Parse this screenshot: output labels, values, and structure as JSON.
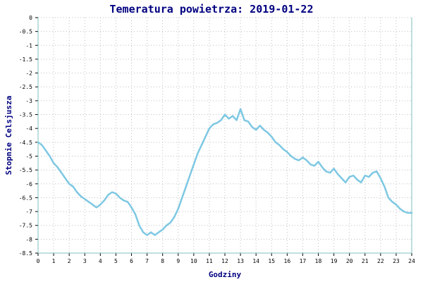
{
  "chart_data": {
    "type": "line",
    "title": "Temeratura powietrza: 2019-01-22",
    "xlabel": "Godziny",
    "ylabel": "Stopnie Celsjusza",
    "xlim": [
      0,
      24
    ],
    "ylim": [
      -8.5,
      0
    ],
    "xticks": [
      "0",
      "1",
      "2",
      "3",
      "4",
      "5",
      "6",
      "7",
      "8",
      "9",
      "10",
      "11",
      "12",
      "13",
      "14",
      "15",
      "16",
      "17",
      "18",
      "19",
      "20",
      "21",
      "22",
      "23",
      "24"
    ],
    "yticks": [
      "0",
      "-0.5",
      "-1",
      "-1.5",
      "-2",
      "-2.5",
      "-3",
      "-3.5",
      "-4",
      "-4.5",
      "-5",
      "-5.5",
      "-6",
      "-6.5",
      "-7",
      "-7.5",
      "-8",
      "-8.5"
    ],
    "grid": true,
    "series": [
      {
        "color": "#7ec8e3",
        "x": [
          0,
          0.25,
          0.5,
          0.75,
          1,
          1.25,
          1.5,
          1.75,
          2,
          2.25,
          2.5,
          2.75,
          3,
          3.25,
          3.5,
          3.75,
          4,
          4.25,
          4.5,
          4.75,
          5,
          5.25,
          5.5,
          5.75,
          6,
          6.25,
          6.5,
          6.75,
          7,
          7.25,
          7.5,
          7.75,
          8,
          8.25,
          8.5,
          8.75,
          9,
          9.25,
          9.5,
          9.75,
          10,
          10.25,
          10.5,
          10.75,
          11,
          11.25,
          11.5,
          11.75,
          12,
          12.25,
          12.5,
          12.75,
          13,
          13.25,
          13.5,
          13.75,
          14,
          14.25,
          14.5,
          14.75,
          15,
          15.25,
          15.5,
          15.75,
          16,
          16.25,
          16.5,
          16.75,
          17,
          17.25,
          17.5,
          17.75,
          18,
          18.25,
          18.5,
          18.75,
          19,
          19.25,
          19.5,
          19.75,
          20,
          20.25,
          20.5,
          20.75,
          21,
          21.25,
          21.5,
          21.75,
          22,
          22.25,
          22.5,
          22.75,
          23,
          23.25,
          23.5,
          23.75,
          24
        ],
        "y": [
          -4.5,
          -4.6,
          -4.8,
          -5.0,
          -5.25,
          -5.4,
          -5.6,
          -5.8,
          -6.0,
          -6.1,
          -6.3,
          -6.45,
          -6.55,
          -6.65,
          -6.75,
          -6.85,
          -6.75,
          -6.6,
          -6.4,
          -6.3,
          -6.35,
          -6.5,
          -6.6,
          -6.65,
          -6.85,
          -7.1,
          -7.5,
          -7.75,
          -7.85,
          -7.75,
          -7.85,
          -7.75,
          -7.65,
          -7.5,
          -7.4,
          -7.2,
          -6.9,
          -6.5,
          -6.1,
          -5.7,
          -5.3,
          -4.9,
          -4.6,
          -4.3,
          -4.0,
          -3.85,
          -3.8,
          -3.7,
          -3.5,
          -3.65,
          -3.55,
          -3.7,
          -3.3,
          -3.7,
          -3.75,
          -3.95,
          -4.05,
          -3.9,
          -4.05,
          -4.15,
          -4.3,
          -4.5,
          -4.6,
          -4.75,
          -4.85,
          -5.0,
          -5.1,
          -5.15,
          -5.05,
          -5.15,
          -5.3,
          -5.35,
          -5.2,
          -5.4,
          -5.55,
          -5.6,
          -5.45,
          -5.65,
          -5.8,
          -5.95,
          -5.75,
          -5.7,
          -5.85,
          -5.95,
          -5.7,
          -5.75,
          -5.6,
          -5.55,
          -5.8,
          -6.1,
          -6.5,
          -6.65,
          -6.75,
          -6.9,
          -7.0,
          -7.05,
          -7.05
        ]
      }
    ]
  }
}
